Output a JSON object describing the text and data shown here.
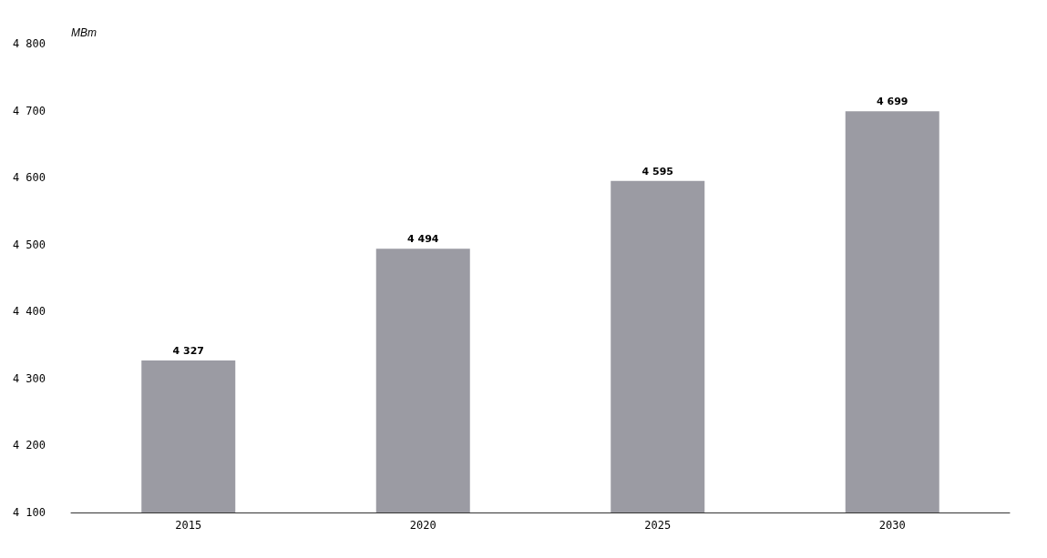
{
  "chart_data": {
    "type": "bar",
    "ylabel": "МВт",
    "categories": [
      "2015",
      "2020",
      "2025",
      "2030"
    ],
    "values": [
      4327,
      4494,
      4595,
      4699
    ],
    "value_labels": [
      "4 327",
      "4 494",
      "4 595",
      "4 699"
    ],
    "color": "#9b9ba3",
    "ylim": [
      4100,
      4800
    ],
    "yticks": [
      {
        "value": 4100,
        "label": "4 100"
      },
      {
        "value": 4200,
        "label": "4 200"
      },
      {
        "value": 4300,
        "label": "4 300"
      },
      {
        "value": 4400,
        "label": "4 400"
      },
      {
        "value": 4500,
        "label": "4 500"
      },
      {
        "value": 4600,
        "label": "4 600"
      },
      {
        "value": 4700,
        "label": "4 700"
      },
      {
        "value": 4800,
        "label": "4 800"
      }
    ],
    "grid": false
  }
}
